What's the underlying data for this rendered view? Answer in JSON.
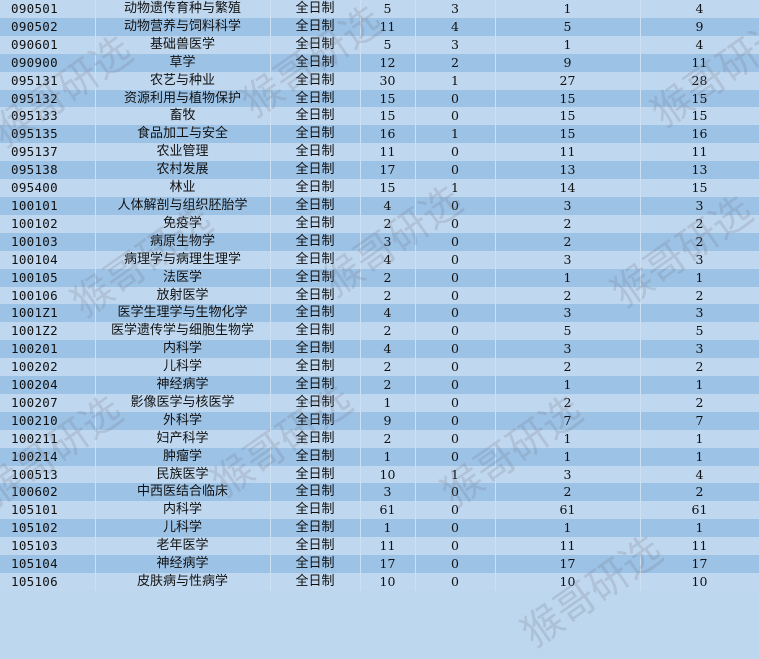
{
  "watermark": "猴哥研选",
  "rows": [
    [
      "090501",
      "动物遗传育种与繁殖",
      "全日制",
      "5",
      "3",
      "1",
      "4"
    ],
    [
      "090502",
      "动物营养与饲料科学",
      "全日制",
      "11",
      "4",
      "5",
      "9"
    ],
    [
      "090601",
      "基础兽医学",
      "全日制",
      "5",
      "3",
      "1",
      "4"
    ],
    [
      "090900",
      "草学",
      "全日制",
      "12",
      "2",
      "9",
      "11"
    ],
    [
      "095131",
      "农艺与种业",
      "全日制",
      "30",
      "1",
      "27",
      "28"
    ],
    [
      "095132",
      "资源利用与植物保护",
      "全日制",
      "15",
      "0",
      "15",
      "15"
    ],
    [
      "095133",
      "畜牧",
      "全日制",
      "15",
      "0",
      "15",
      "15"
    ],
    [
      "095135",
      "食品加工与安全",
      "全日制",
      "16",
      "1",
      "15",
      "16"
    ],
    [
      "095137",
      "农业管理",
      "全日制",
      "11",
      "0",
      "11",
      "11"
    ],
    [
      "095138",
      "农村发展",
      "全日制",
      "17",
      "0",
      "13",
      "13"
    ],
    [
      "095400",
      "林业",
      "全日制",
      "15",
      "1",
      "14",
      "15"
    ],
    [
      "100101",
      "人体解剖与组织胚胎学",
      "全日制",
      "4",
      "0",
      "3",
      "3"
    ],
    [
      "100102",
      "免疫学",
      "全日制",
      "2",
      "0",
      "2",
      "2"
    ],
    [
      "100103",
      "病原生物学",
      "全日制",
      "3",
      "0",
      "2",
      "2"
    ],
    [
      "100104",
      "病理学与病理生理学",
      "全日制",
      "4",
      "0",
      "3",
      "3"
    ],
    [
      "100105",
      "法医学",
      "全日制",
      "2",
      "0",
      "1",
      "1"
    ],
    [
      "100106",
      "放射医学",
      "全日制",
      "2",
      "0",
      "2",
      "2"
    ],
    [
      "1001Z1",
      "医学生理学与生物化学",
      "全日制",
      "4",
      "0",
      "3",
      "3"
    ],
    [
      "1001Z2",
      "医学遗传学与细胞生物学",
      "全日制",
      "2",
      "0",
      "5",
      "5"
    ],
    [
      "100201",
      "内科学",
      "全日制",
      "4",
      "0",
      "3",
      "3"
    ],
    [
      "100202",
      "儿科学",
      "全日制",
      "2",
      "0",
      "2",
      "2"
    ],
    [
      "100204",
      "神经病学",
      "全日制",
      "2",
      "0",
      "1",
      "1"
    ],
    [
      "100207",
      "影像医学与核医学",
      "全日制",
      "1",
      "0",
      "2",
      "2"
    ],
    [
      "100210",
      "外科学",
      "全日制",
      "9",
      "0",
      "7",
      "7"
    ],
    [
      "100211",
      "妇产科学",
      "全日制",
      "2",
      "0",
      "1",
      "1"
    ],
    [
      "100214",
      "肿瘤学",
      "全日制",
      "1",
      "0",
      "1",
      "1"
    ],
    [
      "100513",
      "民族医学",
      "全日制",
      "10",
      "1",
      "3",
      "4"
    ],
    [
      "100602",
      "中西医结合临床",
      "全日制",
      "3",
      "0",
      "2",
      "2"
    ],
    [
      "105101",
      "内科学",
      "全日制",
      "61",
      "0",
      "61",
      "61"
    ],
    [
      "105102",
      "儿科学",
      "全日制",
      "1",
      "0",
      "1",
      "1"
    ],
    [
      "105103",
      "老年医学",
      "全日制",
      "11",
      "0",
      "11",
      "11"
    ],
    [
      "105104",
      "神经病学",
      "全日制",
      "17",
      "0",
      "17",
      "17"
    ],
    [
      "105106",
      "皮肤病与性病学",
      "全日制",
      "10",
      "0",
      "10",
      "10"
    ]
  ]
}
